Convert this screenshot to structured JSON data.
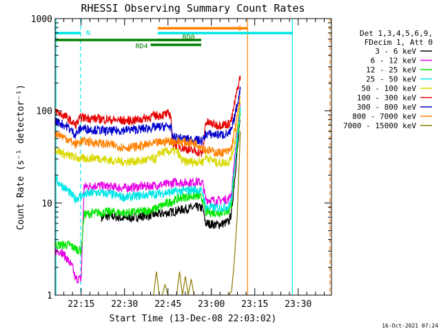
{
  "chart_data": {
    "type": "line",
    "title": "RHESSI Observing Summary Count Rates",
    "xlabel": "Start Time (13-Dec-08 22:03:02)",
    "ylabel": "Count Rate (s⁻¹ detector⁻¹)",
    "yscale": "log",
    "ylim": [
      1,
      1000
    ],
    "xlim_minutes_since_22_00": [
      6,
      41.5
    ],
    "y_ticks": [
      "1",
      "10",
      "100",
      "1000"
    ],
    "x_ticks": [
      {
        "label": "22:15",
        "minute": 15
      },
      {
        "label": "22:30",
        "minute": 30
      },
      {
        "label": "22:45",
        "minute": 45
      },
      {
        "label": "23:00",
        "minute": 60
      },
      {
        "label": "23:15",
        "minute": 75
      },
      {
        "label": "23:30",
        "minute": 90
      }
    ],
    "legend_header": [
      "Det 1,3,4,5,6,9,",
      "FDecim 1, Att 0"
    ],
    "legend_placement": "right",
    "series": [
      {
        "name": "3 - 6 keV",
        "color": "#000000",
        "points": [
          [
            22,
            7
          ],
          [
            25,
            7.2
          ],
          [
            30,
            6.8
          ],
          [
            35,
            7.1
          ],
          [
            41,
            7.5
          ],
          [
            45,
            7.8
          ],
          [
            50,
            8.5
          ],
          [
            55,
            9
          ],
          [
            57,
            8.8
          ],
          [
            58,
            6
          ],
          [
            62,
            5.8
          ],
          [
            66,
            6.2
          ],
          [
            67,
            8
          ],
          [
            68,
            18
          ],
          [
            70,
            80
          ]
        ]
      },
      {
        "name": "6 - 12 keV",
        "color": "#e600e6",
        "points": [
          [
            6,
            3
          ],
          [
            8,
            3
          ],
          [
            10,
            2.5
          ],
          [
            12,
            2
          ],
          [
            13,
            1.5
          ],
          [
            15,
            1.5
          ],
          [
            16,
            15
          ],
          [
            20,
            15.5
          ],
          [
            25,
            15
          ],
          [
            30,
            14.5
          ],
          [
            35,
            15
          ],
          [
            40,
            15.5
          ],
          [
            45,
            16
          ],
          [
            48,
            17
          ],
          [
            50,
            16.5
          ],
          [
            55,
            17
          ],
          [
            57,
            16.5
          ],
          [
            58,
            11
          ],
          [
            62,
            10.5
          ],
          [
            66,
            11
          ],
          [
            67,
            13
          ],
          [
            68,
            30
          ],
          [
            70,
            120
          ]
        ]
      },
      {
        "name": "12 - 25 keV",
        "color": "#00e600",
        "points": [
          [
            6,
            3.5
          ],
          [
            8,
            3.5
          ],
          [
            11,
            3.5
          ],
          [
            13,
            3.2
          ],
          [
            15,
            3
          ],
          [
            16,
            7.5
          ],
          [
            20,
            7.8
          ],
          [
            25,
            8
          ],
          [
            30,
            7.8
          ],
          [
            35,
            8
          ],
          [
            40,
            8.5
          ],
          [
            45,
            10
          ],
          [
            50,
            11.5
          ],
          [
            55,
            12
          ],
          [
            57,
            11
          ],
          [
            58,
            8
          ],
          [
            62,
            7.8
          ],
          [
            66,
            8.2
          ],
          [
            67,
            10
          ],
          [
            68,
            22
          ],
          [
            70,
            100
          ]
        ]
      },
      {
        "name": "25 - 50 keV",
        "color": "#00e6e6",
        "points": [
          [
            6,
            18
          ],
          [
            10,
            14
          ],
          [
            13,
            11
          ],
          [
            15,
            12
          ],
          [
            20,
            13
          ],
          [
            25,
            12.5
          ],
          [
            30,
            11.5
          ],
          [
            35,
            12
          ],
          [
            40,
            12.5
          ],
          [
            45,
            13
          ],
          [
            50,
            13.5
          ],
          [
            55,
            14
          ],
          [
            57,
            13
          ],
          [
            58,
            9
          ],
          [
            62,
            8.8
          ],
          [
            66,
            9.2
          ],
          [
            67,
            11
          ],
          [
            68,
            25
          ],
          [
            70,
            110
          ]
        ]
      },
      {
        "name": "50 - 100 keV",
        "color": "#d9d900",
        "points": [
          [
            6,
            38
          ],
          [
            10,
            33
          ],
          [
            15,
            30
          ],
          [
            20,
            31
          ],
          [
            25,
            29
          ],
          [
            30,
            28
          ],
          [
            35,
            28.5
          ],
          [
            40,
            30
          ],
          [
            41,
            30
          ],
          [
            42,
            35
          ],
          [
            48,
            37
          ],
          [
            50,
            28
          ],
          [
            55,
            28
          ],
          [
            57,
            28
          ],
          [
            58,
            32
          ],
          [
            62,
            27
          ],
          [
            66,
            28
          ],
          [
            67,
            32
          ],
          [
            68,
            45
          ],
          [
            70,
            120
          ]
        ]
      },
      {
        "name": "100 - 300 keV",
        "color": "#e60000",
        "points": [
          [
            6,
            100
          ],
          [
            10,
            85
          ],
          [
            13,
            70
          ],
          [
            15,
            85
          ],
          [
            20,
            82
          ],
          [
            25,
            80
          ],
          [
            30,
            78
          ],
          [
            35,
            80
          ],
          [
            40,
            88
          ],
          [
            45,
            92
          ],
          [
            46,
            90
          ],
          [
            46.5,
            45
          ],
          [
            50,
            40
          ],
          [
            53,
            37
          ],
          [
            55,
            36
          ],
          [
            57,
            34
          ],
          [
            58,
            75
          ],
          [
            62,
            70
          ],
          [
            66,
            72
          ],
          [
            67,
            80
          ],
          [
            68,
            120
          ],
          [
            70,
            240
          ]
        ]
      },
      {
        "name": "300 - 800 keV",
        "color": "#0000cc",
        "points": [
          [
            6,
            78
          ],
          [
            10,
            68
          ],
          [
            13,
            55
          ],
          [
            15,
            65
          ],
          [
            20,
            62
          ],
          [
            25,
            60
          ],
          [
            30,
            62
          ],
          [
            35,
            63
          ],
          [
            40,
            66
          ],
          [
            45,
            68
          ],
          [
            46,
            67
          ],
          [
            46.5,
            52
          ],
          [
            50,
            50
          ],
          [
            55,
            48
          ],
          [
            57,
            47
          ],
          [
            58,
            56
          ],
          [
            62,
            55
          ],
          [
            66,
            56
          ],
          [
            67,
            62
          ],
          [
            68,
            85
          ],
          [
            70,
            170
          ]
        ]
      },
      {
        "name": "800 - 7000 keV",
        "color": "#ff8000",
        "points": [
          [
            6,
            58
          ],
          [
            10,
            50
          ],
          [
            13,
            43
          ],
          [
            15,
            47
          ],
          [
            20,
            45
          ],
          [
            25,
            43
          ],
          [
            30,
            40
          ],
          [
            35,
            41
          ],
          [
            40,
            44
          ],
          [
            45,
            47
          ],
          [
            50,
            46
          ],
          [
            55,
            44
          ],
          [
            57,
            40
          ],
          [
            58,
            38
          ],
          [
            62,
            35
          ],
          [
            66,
            36
          ],
          [
            67,
            40
          ],
          [
            68,
            60
          ],
          [
            70,
            140
          ]
        ]
      },
      {
        "name": "7000 - 15000 keV",
        "color": "#8c7a00",
        "points": [
          [
            39,
            1
          ],
          [
            40,
            1
          ],
          [
            41,
            1.8
          ],
          [
            42,
            1
          ],
          [
            43,
            1
          ],
          [
            44,
            1.3
          ],
          [
            45,
            1
          ],
          [
            48,
            1
          ],
          [
            49,
            1.8
          ],
          [
            50,
            1
          ],
          [
            51,
            1.6
          ],
          [
            52,
            1
          ],
          [
            53,
            1.5
          ],
          [
            54,
            1
          ],
          [
            60,
            1
          ],
          [
            65,
            1
          ],
          [
            66,
            1
          ],
          [
            67,
            1.1
          ],
          [
            68,
            2.5
          ],
          [
            69,
            8
          ],
          [
            70,
            60
          ]
        ]
      }
    ],
    "flag_bars": [
      {
        "label": "N",
        "color": "#00e6e6",
        "segments": [
          [
            6,
            14.8
          ],
          [
            88,
            41.5
          ]
        ],
        "level": "upper"
      },
      {
        "label": "S",
        "color": "#ff8000",
        "segments": [
          [
            72.5,
            41.5
          ]
        ],
        "level": "top"
      },
      {
        "label": "RD0",
        "color": "#008000",
        "segments": [
          [
            6,
            53.5
          ],
          [
            56.5,
            41.5
          ]
        ],
        "level": "middle"
      },
      {
        "label": "RD4",
        "color": "#008000",
        "segments": [
          [
            39,
            56.5
          ]
        ],
        "level": "lower"
      }
    ],
    "vertical_lines": [
      {
        "minute": 6.3,
        "color": "#00e6e6",
        "style": "solid"
      },
      {
        "minute": 14.8,
        "color": "#00e6e6",
        "style": "dashed"
      },
      {
        "minute": 72.5,
        "color": "#ff8000",
        "style": "solid"
      },
      {
        "minute": 88,
        "color": "#00e6e6",
        "style": "solid"
      },
      {
        "minute": 101,
        "color": "#ff8000",
        "style": "dashed"
      }
    ],
    "timestamp": "16-Oct-2021 07:24"
  }
}
